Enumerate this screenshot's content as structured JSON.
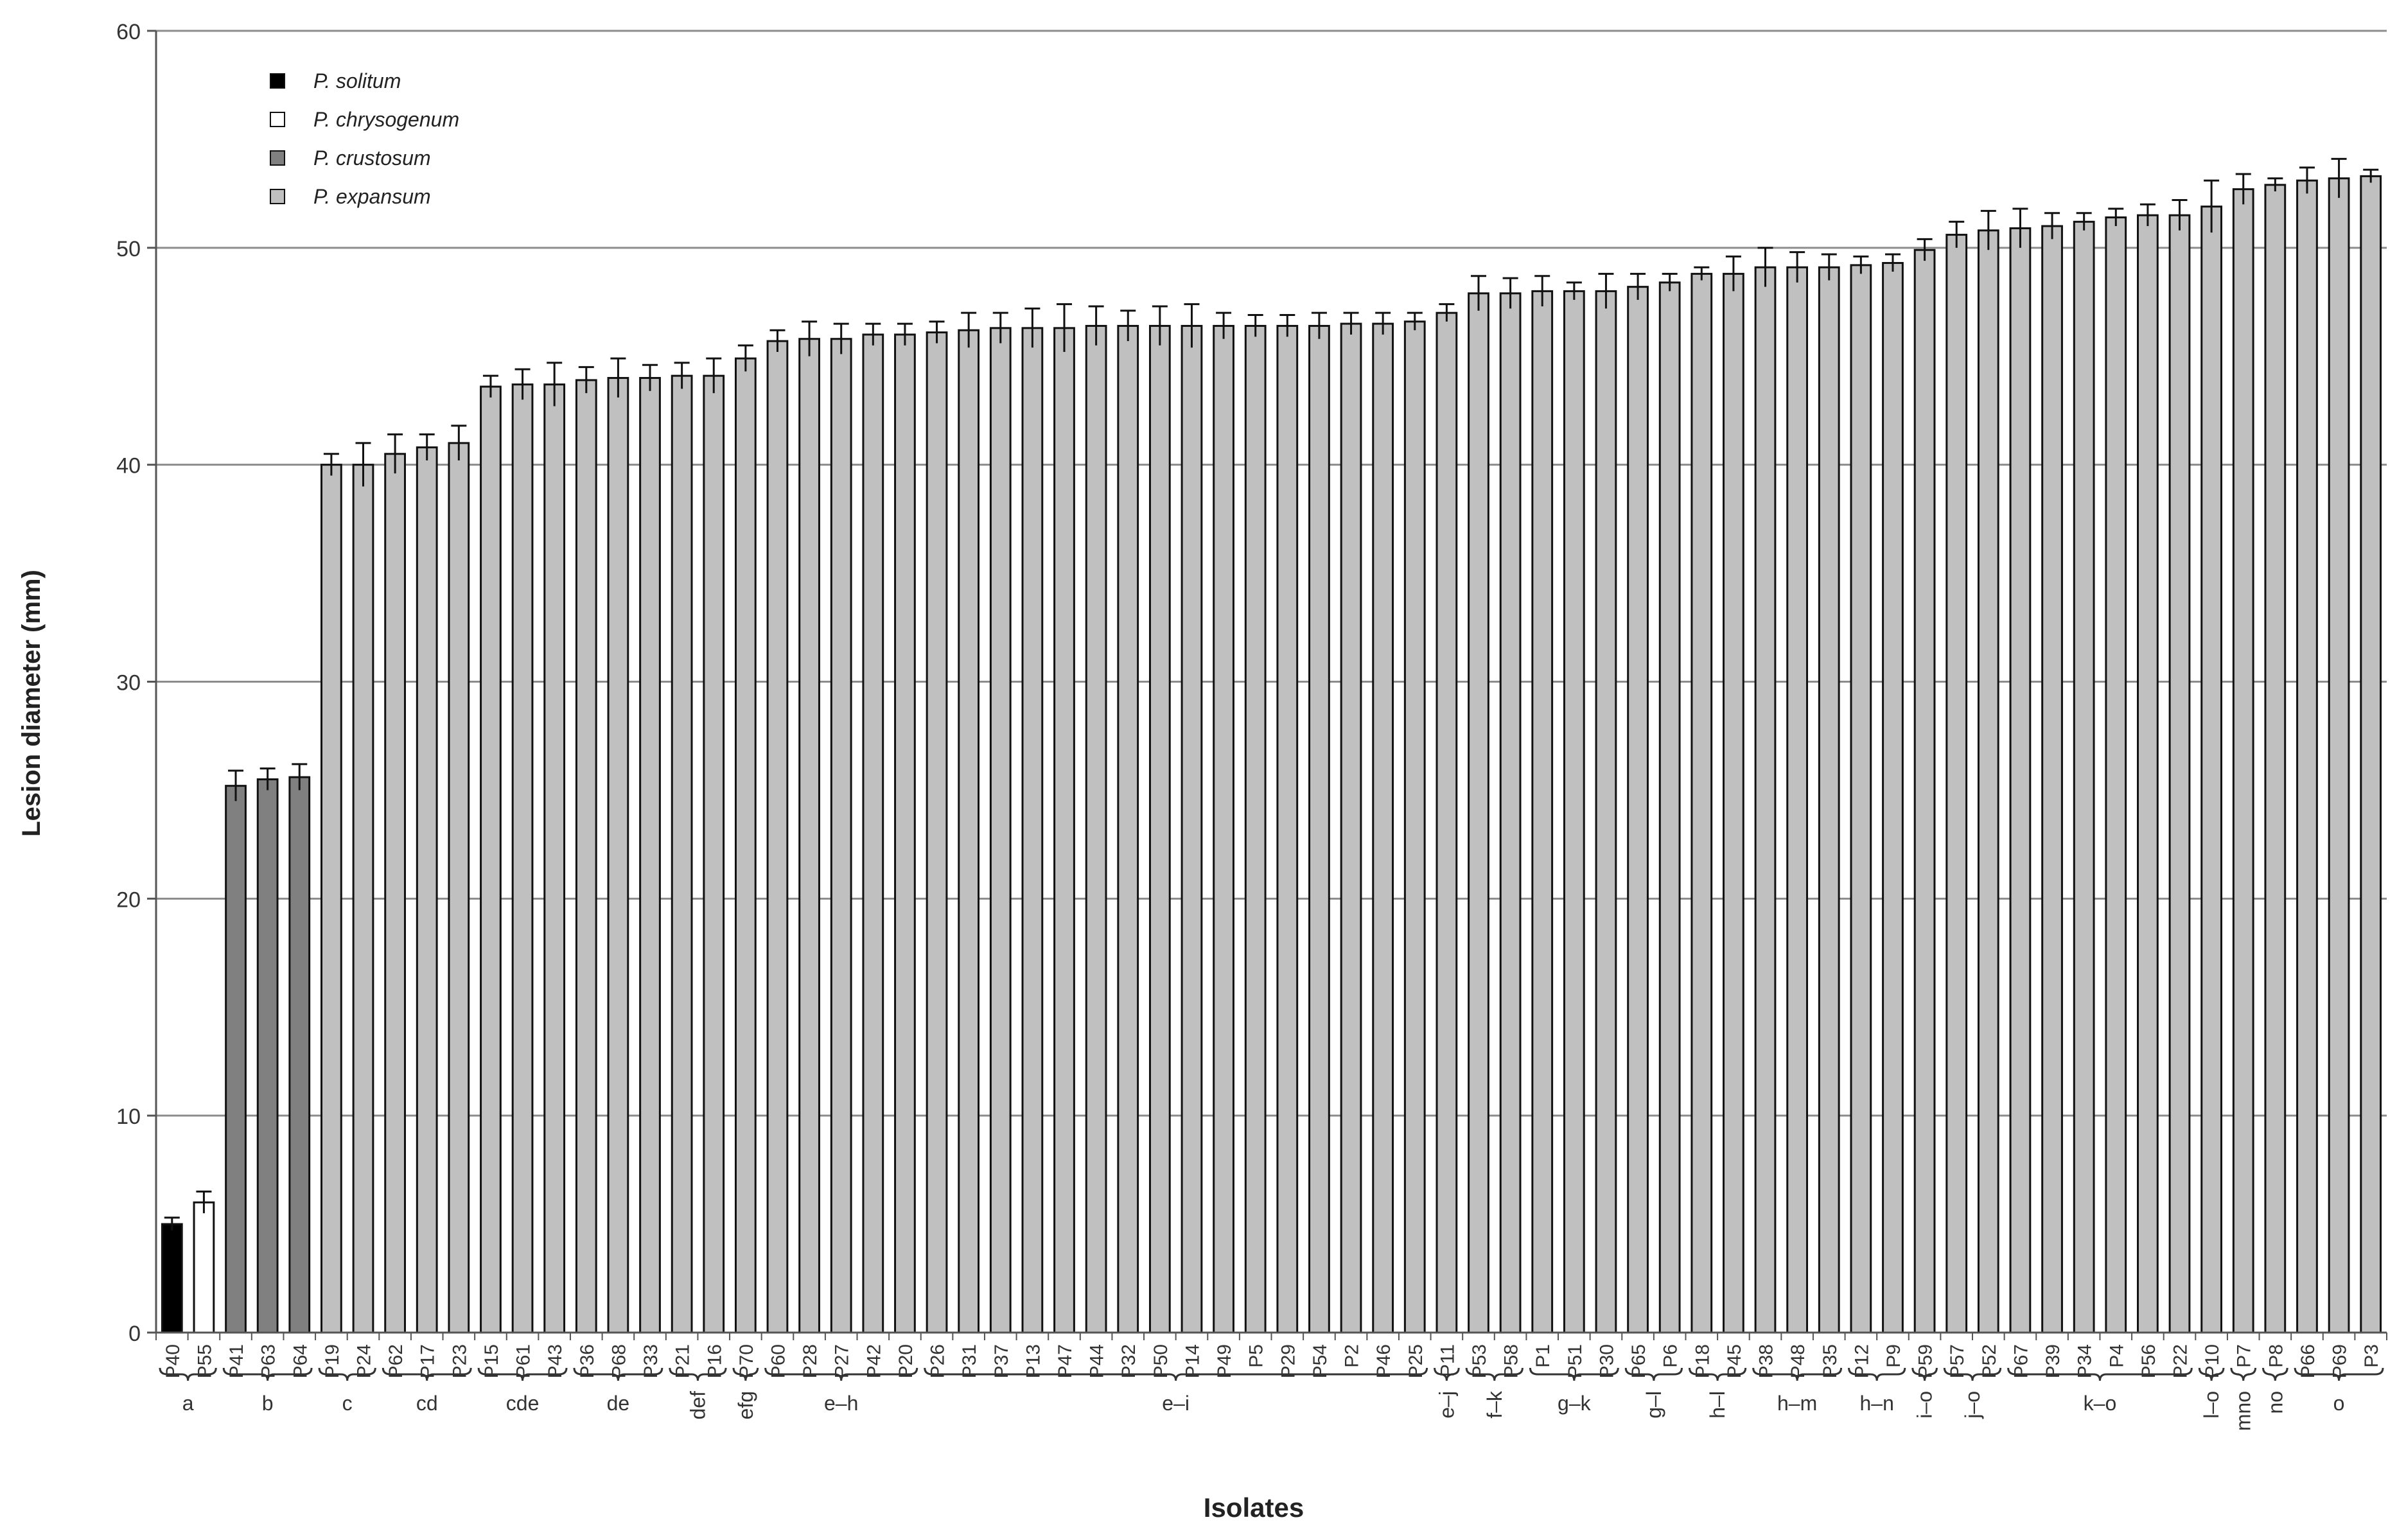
{
  "chart_data": {
    "type": "bar",
    "title": "",
    "xlabel": "Isolates",
    "ylabel": "Lesion diameter (mm)",
    "ylim": [
      0,
      60
    ],
    "yticks": [
      0,
      10,
      20,
      30,
      40,
      50,
      60
    ],
    "grid": true,
    "legend_position": "top-left",
    "series": [
      {
        "name": "P. solitum",
        "color": "#000000"
      },
      {
        "name": "P. chrysogenum",
        "color": "#ffffff"
      },
      {
        "name": "P. crustosum",
        "color": "#808080"
      },
      {
        "name": "P. expansum",
        "color": "#c0c0c0"
      }
    ],
    "bars": [
      {
        "label": "P40",
        "value": 5.0,
        "err": 0.3,
        "series": 0
      },
      {
        "label": "P55",
        "value": 6.0,
        "err": 0.5,
        "series": 1
      },
      {
        "label": "P41",
        "value": 25.2,
        "err": 0.7,
        "series": 2
      },
      {
        "label": "P63",
        "value": 25.5,
        "err": 0.5,
        "series": 2
      },
      {
        "label": "P64",
        "value": 25.6,
        "err": 0.6,
        "series": 2
      },
      {
        "label": "P19",
        "value": 40.0,
        "err": 0.5,
        "series": 3
      },
      {
        "label": "P24",
        "value": 40.0,
        "err": 1.0,
        "series": 3
      },
      {
        "label": "P62",
        "value": 40.5,
        "err": 0.9,
        "series": 3
      },
      {
        "label": "P17",
        "value": 40.8,
        "err": 0.6,
        "series": 3
      },
      {
        "label": "P23",
        "value": 41.0,
        "err": 0.8,
        "series": 3
      },
      {
        "label": "P15",
        "value": 43.6,
        "err": 0.5,
        "series": 3
      },
      {
        "label": "P61",
        "value": 43.7,
        "err": 0.7,
        "series": 3
      },
      {
        "label": "P43",
        "value": 43.7,
        "err": 1.0,
        "series": 3
      },
      {
        "label": "P36",
        "value": 43.9,
        "err": 0.6,
        "series": 3
      },
      {
        "label": "P68",
        "value": 44.0,
        "err": 0.9,
        "series": 3
      },
      {
        "label": "P33",
        "value": 44.0,
        "err": 0.6,
        "series": 3
      },
      {
        "label": "P21",
        "value": 44.1,
        "err": 0.6,
        "series": 3
      },
      {
        "label": "P16",
        "value": 44.1,
        "err": 0.8,
        "series": 3
      },
      {
        "label": "P70",
        "value": 44.9,
        "err": 0.6,
        "series": 3
      },
      {
        "label": "P60",
        "value": 45.7,
        "err": 0.5,
        "series": 3
      },
      {
        "label": "P28",
        "value": 45.8,
        "err": 0.8,
        "series": 3
      },
      {
        "label": "P27",
        "value": 45.8,
        "err": 0.7,
        "series": 3
      },
      {
        "label": "P42",
        "value": 46.0,
        "err": 0.5,
        "series": 3
      },
      {
        "label": "P20",
        "value": 46.0,
        "err": 0.5,
        "series": 3
      },
      {
        "label": "P26",
        "value": 46.1,
        "err": 0.5,
        "series": 3
      },
      {
        "label": "P31",
        "value": 46.2,
        "err": 0.8,
        "series": 3
      },
      {
        "label": "P37",
        "value": 46.3,
        "err": 0.7,
        "series": 3
      },
      {
        "label": "P13",
        "value": 46.3,
        "err": 0.9,
        "series": 3
      },
      {
        "label": "P47",
        "value": 46.3,
        "err": 1.1,
        "series": 3
      },
      {
        "label": "P44",
        "value": 46.4,
        "err": 0.9,
        "series": 3
      },
      {
        "label": "P32",
        "value": 46.4,
        "err": 0.7,
        "series": 3
      },
      {
        "label": "P50",
        "value": 46.4,
        "err": 0.9,
        "series": 3
      },
      {
        "label": "P14",
        "value": 46.4,
        "err": 1.0,
        "series": 3
      },
      {
        "label": "P49",
        "value": 46.4,
        "err": 0.6,
        "series": 3
      },
      {
        "label": "P5",
        "value": 46.4,
        "err": 0.5,
        "series": 3
      },
      {
        "label": "P29",
        "value": 46.4,
        "err": 0.5,
        "series": 3
      },
      {
        "label": "P54",
        "value": 46.4,
        "err": 0.6,
        "series": 3
      },
      {
        "label": "P2",
        "value": 46.5,
        "err": 0.5,
        "series": 3
      },
      {
        "label": "P46",
        "value": 46.5,
        "err": 0.5,
        "series": 3
      },
      {
        "label": "P25",
        "value": 46.6,
        "err": 0.4,
        "series": 3
      },
      {
        "label": "P11",
        "value": 47.0,
        "err": 0.4,
        "series": 3
      },
      {
        "label": "P53",
        "value": 47.9,
        "err": 0.8,
        "series": 3
      },
      {
        "label": "P58",
        "value": 47.9,
        "err": 0.7,
        "series": 3
      },
      {
        "label": "P1",
        "value": 48.0,
        "err": 0.7,
        "series": 3
      },
      {
        "label": "P51",
        "value": 48.0,
        "err": 0.4,
        "series": 3
      },
      {
        "label": "P30",
        "value": 48.0,
        "err": 0.8,
        "series": 3
      },
      {
        "label": "P65",
        "value": 48.2,
        "err": 0.6,
        "series": 3
      },
      {
        "label": "P6",
        "value": 48.4,
        "err": 0.4,
        "series": 3
      },
      {
        "label": "P18",
        "value": 48.8,
        "err": 0.3,
        "series": 3
      },
      {
        "label": "P45",
        "value": 48.8,
        "err": 0.8,
        "series": 3
      },
      {
        "label": "P38",
        "value": 49.1,
        "err": 0.9,
        "series": 3
      },
      {
        "label": "P48",
        "value": 49.1,
        "err": 0.7,
        "series": 3
      },
      {
        "label": "P35",
        "value": 49.1,
        "err": 0.6,
        "series": 3
      },
      {
        "label": "P12",
        "value": 49.2,
        "err": 0.4,
        "series": 3
      },
      {
        "label": "P9",
        "value": 49.3,
        "err": 0.4,
        "series": 3
      },
      {
        "label": "P59",
        "value": 49.9,
        "err": 0.5,
        "series": 3
      },
      {
        "label": "P57",
        "value": 50.6,
        "err": 0.6,
        "series": 3
      },
      {
        "label": "P52",
        "value": 50.8,
        "err": 0.9,
        "series": 3
      },
      {
        "label": "P67",
        "value": 50.9,
        "err": 0.9,
        "series": 3
      },
      {
        "label": "P39",
        "value": 51.0,
        "err": 0.6,
        "series": 3
      },
      {
        "label": "P34",
        "value": 51.2,
        "err": 0.4,
        "series": 3
      },
      {
        "label": "P4",
        "value": 51.4,
        "err": 0.4,
        "series": 3
      },
      {
        "label": "P56",
        "value": 51.5,
        "err": 0.5,
        "series": 3
      },
      {
        "label": "P22",
        "value": 51.5,
        "err": 0.7,
        "series": 3
      },
      {
        "label": "P10",
        "value": 51.9,
        "err": 1.2,
        "series": 3
      },
      {
        "label": "P7",
        "value": 52.7,
        "err": 0.7,
        "series": 3
      },
      {
        "label": "P8",
        "value": 52.9,
        "err": 0.3,
        "series": 3
      },
      {
        "label": "P66",
        "value": 53.1,
        "err": 0.6,
        "series": 3
      },
      {
        "label": "P69",
        "value": 53.2,
        "err": 0.9,
        "series": 3
      },
      {
        "label": "P3",
        "value": 53.3,
        "err": 0.3,
        "series": 3
      }
    ],
    "groups": [
      {
        "letter": "a",
        "from": 0,
        "to": 1,
        "rotated": false
      },
      {
        "letter": "b",
        "from": 2,
        "to": 4,
        "rotated": false
      },
      {
        "letter": "c",
        "from": 5,
        "to": 6,
        "rotated": false
      },
      {
        "letter": "cd",
        "from": 7,
        "to": 9,
        "rotated": false
      },
      {
        "letter": "cde",
        "from": 10,
        "to": 12,
        "rotated": false
      },
      {
        "letter": "de",
        "from": 13,
        "to": 15,
        "rotated": false
      },
      {
        "letter": "def",
        "from": 16,
        "to": 17,
        "rotated": true
      },
      {
        "letter": "efg",
        "from": 18,
        "to": 18,
        "rotated": true
      },
      {
        "letter": "e–h",
        "from": 19,
        "to": 23,
        "rotated": false
      },
      {
        "letter": "e–i",
        "from": 24,
        "to": 39,
        "rotated": false
      },
      {
        "letter": "e–j",
        "from": 40,
        "to": 40,
        "rotated": true
      },
      {
        "letter": "f–k",
        "from": 41,
        "to": 42,
        "rotated": true
      },
      {
        "letter": "g–k",
        "from": 43,
        "to": 45,
        "rotated": false
      },
      {
        "letter": "g–l",
        "from": 46,
        "to": 47,
        "rotated": true
      },
      {
        "letter": "h–l",
        "from": 48,
        "to": 49,
        "rotated": true
      },
      {
        "letter": "h–m",
        "from": 50,
        "to": 52,
        "rotated": false
      },
      {
        "letter": "h–n",
        "from": 53,
        "to": 54,
        "rotated": false
      },
      {
        "letter": "i–o",
        "from": 55,
        "to": 55,
        "rotated": true
      },
      {
        "letter": "j–o",
        "from": 56,
        "to": 57,
        "rotated": true
      },
      {
        "letter": "k–o",
        "from": 58,
        "to": 63,
        "rotated": false
      },
      {
        "letter": "l–o",
        "from": 64,
        "to": 64,
        "rotated": true
      },
      {
        "letter": "mno",
        "from": 65,
        "to": 65,
        "rotated": true
      },
      {
        "letter": "no",
        "from": 66,
        "to": 66,
        "rotated": true
      },
      {
        "letter": "o",
        "from": 67,
        "to": 69,
        "rotated": false
      }
    ]
  }
}
